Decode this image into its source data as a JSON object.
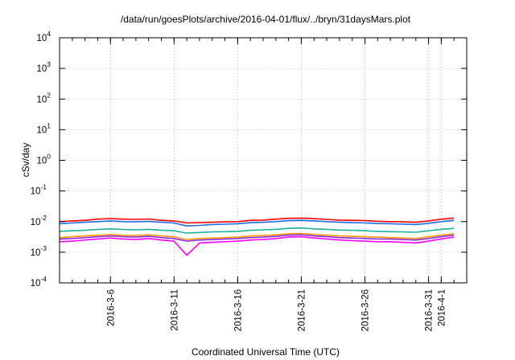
{
  "chart_data": {
    "type": "line",
    "title": "/data/run/goesPlots/archive/2016-04-01/flux/../bryn/31daysMars.plot",
    "xlabel": "Coordinated Universal Time (UTC)",
    "ylabel": "cSv/day",
    "yscale": "log",
    "ylim": [
      0.0001,
      10000
    ],
    "xlim": [
      "2016-03-02",
      "2016-04-03"
    ],
    "grid": true,
    "legend": "none",
    "yticks": [
      {
        "base": "10",
        "exp": "-4"
      },
      {
        "base": "10",
        "exp": "-3"
      },
      {
        "base": "10",
        "exp": "-2"
      },
      {
        "base": "10",
        "exp": "-1"
      },
      {
        "base": "10",
        "exp": "0"
      },
      {
        "base": "10",
        "exp": "1"
      },
      {
        "base": "10",
        "exp": "2"
      },
      {
        "base": "10",
        "exp": "3"
      },
      {
        "base": "10",
        "exp": "4"
      }
    ],
    "xticks": [
      {
        "date": "2016-03-06",
        "label": "2016-3-6"
      },
      {
        "date": "2016-03-11",
        "label": "2016-3-11"
      },
      {
        "date": "2016-03-16",
        "label": "2016-3-16"
      },
      {
        "date": "2016-03-21",
        "label": "2016-3-21"
      },
      {
        "date": "2016-03-26",
        "label": "2016-3-26"
      },
      {
        "date": "2016-03-31",
        "label": "2016-3-31"
      },
      {
        "date": "2016-04-01",
        "label": "2016-4-1"
      }
    ],
    "x": [
      "2016-03-02",
      "2016-03-03",
      "2016-03-04",
      "2016-03-05",
      "2016-03-06",
      "2016-03-07",
      "2016-03-08",
      "2016-03-09",
      "2016-03-10",
      "2016-03-11",
      "2016-03-12",
      "2016-03-13",
      "2016-03-14",
      "2016-03-15",
      "2016-03-16",
      "2016-03-17",
      "2016-03-18",
      "2016-03-19",
      "2016-03-20",
      "2016-03-21",
      "2016-03-22",
      "2016-03-23",
      "2016-03-24",
      "2016-03-25",
      "2016-03-26",
      "2016-03-27",
      "2016-03-28",
      "2016-03-29",
      "2016-03-30",
      "2016-03-31",
      "2016-04-01",
      "2016-04-02"
    ],
    "series": [
      {
        "color": "#ff0000",
        "values": [
          0.01,
          0.0105,
          0.011,
          0.012,
          0.0125,
          0.012,
          0.0118,
          0.0122,
          0.011,
          0.0105,
          0.009,
          0.0092,
          0.0095,
          0.0098,
          0.01,
          0.011,
          0.0112,
          0.012,
          0.0128,
          0.013,
          0.0125,
          0.0118,
          0.0112,
          0.011,
          0.0108,
          0.0102,
          0.01,
          0.0098,
          0.0095,
          0.0105,
          0.012,
          0.013
        ]
      },
      {
        "color": "#1e6ee8",
        "values": [
          0.0085,
          0.009,
          0.0095,
          0.01,
          0.0105,
          0.01,
          0.0098,
          0.0102,
          0.0095,
          0.009,
          0.0072,
          0.0075,
          0.008,
          0.0082,
          0.0085,
          0.0092,
          0.0095,
          0.01,
          0.0108,
          0.011,
          0.0105,
          0.01,
          0.0095,
          0.0092,
          0.009,
          0.0086,
          0.0085,
          0.0082,
          0.008,
          0.0088,
          0.01,
          0.011
        ]
      },
      {
        "color": "#1ab2a0",
        "values": [
          0.0048,
          0.005,
          0.0052,
          0.0055,
          0.0058,
          0.0055,
          0.0054,
          0.0056,
          0.0052,
          0.005,
          0.0042,
          0.0044,
          0.0046,
          0.0047,
          0.0048,
          0.0052,
          0.0054,
          0.0056,
          0.006,
          0.0062,
          0.0058,
          0.0056,
          0.0053,
          0.0052,
          0.005,
          0.0048,
          0.0047,
          0.0046,
          0.0045,
          0.005,
          0.0056,
          0.006
        ]
      },
      {
        "color": "#ff9900",
        "values": [
          0.003,
          0.0032,
          0.0034,
          0.0036,
          0.0038,
          0.0036,
          0.0035,
          0.0037,
          0.0034,
          0.0032,
          0.0026,
          0.0028,
          0.0029,
          0.003,
          0.0031,
          0.0034,
          0.0035,
          0.0037,
          0.004,
          0.0041,
          0.0038,
          0.0036,
          0.0034,
          0.0033,
          0.0032,
          0.0031,
          0.003,
          0.0029,
          0.0028,
          0.0032,
          0.0036,
          0.004
        ]
      },
      {
        "color": "#8a2be2",
        "values": [
          0.0027,
          0.0028,
          0.003,
          0.0032,
          0.0034,
          0.0032,
          0.0031,
          0.0033,
          0.003,
          0.0028,
          0.0023,
          0.0025,
          0.0026,
          0.0027,
          0.0028,
          0.003,
          0.0031,
          0.0033,
          0.0036,
          0.0037,
          0.0034,
          0.0032,
          0.003,
          0.0029,
          0.0028,
          0.0027,
          0.0027,
          0.0026,
          0.0025,
          0.0028,
          0.0032,
          0.0036
        ]
      },
      {
        "color": "#ff00ff",
        "values": [
          0.0022,
          0.0023,
          0.0025,
          0.0027,
          0.0029,
          0.0027,
          0.0026,
          0.0028,
          0.0025,
          0.0023,
          0.0008,
          0.002,
          0.0021,
          0.0022,
          0.0023,
          0.0025,
          0.0026,
          0.0028,
          0.0031,
          0.0032,
          0.0029,
          0.0027,
          0.0025,
          0.0024,
          0.0023,
          0.0022,
          0.0022,
          0.0021,
          0.002,
          0.0023,
          0.0027,
          0.0031
        ]
      }
    ]
  }
}
